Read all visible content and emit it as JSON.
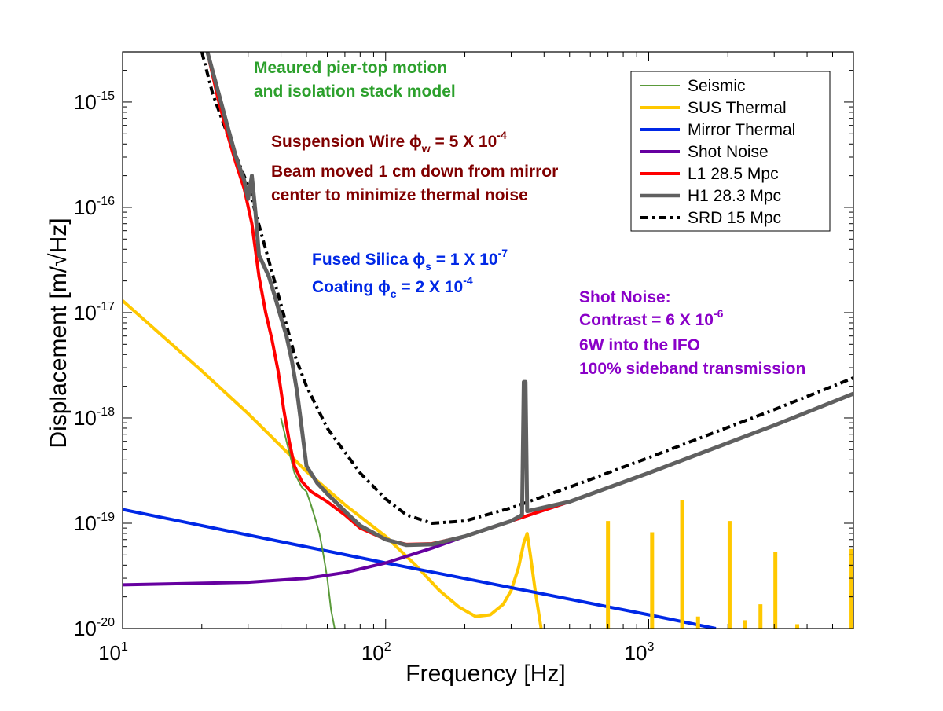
{
  "chart_data": {
    "type": "line",
    "x_scale": "log",
    "y_scale": "log",
    "xlabel": "Frequency [Hz]",
    "ylabel": "Displacement [m/√Hz]",
    "xlim": [
      10,
      6000
    ],
    "ylim": [
      1e-20,
      3e-15
    ],
    "grid": false,
    "legend_position": "top-right",
    "x_ticks": [
      {
        "base": "10",
        "exp": "1",
        "value": 10
      },
      {
        "base": "10",
        "exp": "2",
        "value": 100
      },
      {
        "base": "10",
        "exp": "3",
        "value": 1000
      }
    ],
    "y_ticks": [
      {
        "base": "10",
        "exp": "-15",
        "value": 1e-15
      },
      {
        "base": "10",
        "exp": "-16",
        "value": 1e-16
      },
      {
        "base": "10",
        "exp": "-17",
        "value": 1e-17
      },
      {
        "base": "10",
        "exp": "-18",
        "value": 1e-18
      },
      {
        "base": "10",
        "exp": "-19",
        "value": 1e-19
      },
      {
        "base": "10",
        "exp": "-20",
        "value": 1e-20
      }
    ],
    "series": [
      {
        "name": "Seismic",
        "color": "#5a9a3a",
        "width": 2,
        "dash": "",
        "points": [
          [
            40,
            1e-18
          ],
          [
            42,
            6e-19
          ],
          [
            45,
            3e-19
          ],
          [
            48,
            2.2e-19
          ],
          [
            50,
            2e-19
          ],
          [
            52,
            1.5e-19
          ],
          [
            54,
            1.1e-19
          ],
          [
            56,
            8e-20
          ],
          [
            58,
            5e-20
          ],
          [
            60,
            3e-20
          ],
          [
            62,
            1.5e-20
          ],
          [
            64,
            1e-20
          ]
        ]
      },
      {
        "name": "SUS Thermal",
        "color": "#ffc800",
        "width": 4,
        "dash": "",
        "points": [
          [
            10,
            1.3e-17
          ],
          [
            20,
            2.8e-18
          ],
          [
            30,
            1.1e-18
          ],
          [
            50,
            3.1e-19
          ],
          [
            70,
            1.5e-19
          ],
          [
            100,
            7.5e-20
          ],
          [
            130,
            4e-20
          ],
          [
            160,
            2.3e-20
          ],
          [
            190,
            1.6e-20
          ],
          [
            220,
            1.3e-20
          ],
          [
            250,
            1.35e-20
          ],
          [
            280,
            1.7e-20
          ],
          [
            300,
            2.3e-20
          ],
          [
            320,
            3.8e-20
          ],
          [
            335,
            6.5e-20
          ],
          [
            345,
            8e-20
          ],
          [
            355,
            5e-20
          ],
          [
            370,
            2.3e-20
          ],
          [
            390,
            1e-20
          ]
        ]
      },
      {
        "name": "Mirror Thermal",
        "color": "#0028e6",
        "width": 4,
        "dash": "",
        "points": [
          [
            10,
            1.35e-19
          ],
          [
            100,
            4.2e-20
          ],
          [
            1000,
            1.35e-20
          ],
          [
            1800,
            1e-20
          ]
        ]
      },
      {
        "name": "Shot Noise",
        "color": "#6600a0",
        "width": 4,
        "dash": "",
        "points": [
          [
            10,
            2.6e-20
          ],
          [
            30,
            2.75e-20
          ],
          [
            50,
            3e-20
          ],
          [
            70,
            3.4e-20
          ],
          [
            100,
            4.2e-20
          ],
          [
            150,
            5.8e-20
          ],
          [
            200,
            7.5e-20
          ],
          [
            300,
            1.05e-19
          ],
          [
            500,
            1.6e-19
          ],
          [
            1000,
            3e-19
          ],
          [
            3000,
            8.5e-19
          ],
          [
            6000,
            1.7e-18
          ]
        ]
      },
      {
        "name": "L1  28.5 Mpc",
        "color": "#ff0000",
        "width": 4,
        "dash": "",
        "points": [
          [
            21,
            3e-15
          ],
          [
            23,
            1.1e-15
          ],
          [
            25,
            5e-16
          ],
          [
            27,
            2.6e-16
          ],
          [
            29,
            1.5e-16
          ],
          [
            31,
            7e-17
          ],
          [
            33,
            2.2e-17
          ],
          [
            35,
            1e-17
          ],
          [
            37,
            5.5e-18
          ],
          [
            39,
            2.8e-18
          ],
          [
            41,
            1.2e-18
          ],
          [
            43,
            6e-19
          ],
          [
            45,
            3.5e-19
          ],
          [
            48,
            2.5e-19
          ],
          [
            52,
            2e-19
          ],
          [
            60,
            1.6e-19
          ],
          [
            70,
            1.2e-19
          ],
          [
            80,
            9e-20
          ],
          [
            100,
            7e-20
          ],
          [
            120,
            6.3e-20
          ],
          [
            150,
            6.4e-20
          ],
          [
            200,
            7.5e-20
          ],
          [
            300,
            1.05e-19
          ],
          [
            500,
            1.6e-19
          ],
          [
            1000,
            3e-19
          ],
          [
            3000,
            8.5e-19
          ],
          [
            6000,
            1.7e-18
          ]
        ]
      },
      {
        "name": "H1  28.3 Mpc",
        "color": "#606060",
        "width": 5,
        "dash": "",
        "points": [
          [
            21,
            3e-15
          ],
          [
            23,
            1.3e-15
          ],
          [
            25,
            6e-16
          ],
          [
            27,
            3e-16
          ],
          [
            29,
            1.8e-16
          ],
          [
            30,
            1.2e-16
          ],
          [
            31,
            2e-16
          ],
          [
            32,
            9e-17
          ],
          [
            33,
            3.5e-17
          ],
          [
            34,
            3e-17
          ],
          [
            36,
            2.2e-17
          ],
          [
            38,
            1.4e-17
          ],
          [
            40,
            9e-18
          ],
          [
            42,
            6e-18
          ],
          [
            44,
            3.5e-18
          ],
          [
            46,
            1.8e-18
          ],
          [
            48,
            8e-19
          ],
          [
            50,
            3.5e-19
          ],
          [
            55,
            2.4e-19
          ],
          [
            60,
            1.9e-19
          ],
          [
            70,
            1.3e-19
          ],
          [
            80,
            9.5e-20
          ],
          [
            100,
            7e-20
          ],
          [
            120,
            6.2e-20
          ],
          [
            150,
            6.3e-20
          ],
          [
            200,
            7.5e-20
          ],
          [
            300,
            1.05e-19
          ],
          [
            330,
            1.2e-19
          ],
          [
            335,
            2.2e-18
          ],
          [
            340,
            2.2e-18
          ],
          [
            345,
            1.3e-19
          ],
          [
            500,
            1.6e-19
          ],
          [
            1000,
            3e-19
          ],
          [
            3000,
            8.5e-19
          ],
          [
            6000,
            1.7e-18
          ]
        ]
      },
      {
        "name": "SRD  15 Mpc",
        "color": "#000000",
        "width": 4,
        "dash": "10,5,3,5",
        "points": [
          [
            20,
            3e-15
          ],
          [
            22,
            1.2e-15
          ],
          [
            25,
            5e-16
          ],
          [
            30,
            1.6e-16
          ],
          [
            35,
            4e-17
          ],
          [
            40,
            1.2e-17
          ],
          [
            45,
            4e-18
          ],
          [
            50,
            2e-18
          ],
          [
            60,
            8e-19
          ],
          [
            80,
            3e-19
          ],
          [
            100,
            1.7e-19
          ],
          [
            120,
            1.2e-19
          ],
          [
            150,
            1e-19
          ],
          [
            200,
            1.05e-19
          ],
          [
            300,
            1.4e-19
          ],
          [
            500,
            2.2e-19
          ],
          [
            1000,
            4.2e-19
          ],
          [
            3000,
            1.2e-18
          ],
          [
            6000,
            2.4e-18
          ]
        ]
      }
    ],
    "annotations": [
      {
        "text": "Meaured pier-top motion",
        "color": "#2ca02c"
      },
      {
        "text": "and isolation stack model",
        "color": "#2ca02c"
      },
      {
        "text": "Suspension Wire ϕ",
        "sub": "w",
        "after": " = 5 X 10",
        "sup": "-4",
        "color": "#800000"
      },
      {
        "text": "Beam moved 1 cm down from mirror",
        "color": "#800000"
      },
      {
        "text": "center to minimize thermal noise",
        "color": "#800000"
      },
      {
        "text": "Fused Silica ϕ",
        "sub": "s",
        "after": " = 1 X 10",
        "sup": "-7",
        "color": "#0028e6"
      },
      {
        "text": "Coating ϕ",
        "sub": "c",
        "after": " = 2 X 10",
        "sup": "-4",
        "color": "#0028e6"
      },
      {
        "text": "Shot Noise:",
        "color": "#8a00c8"
      },
      {
        "text": "Contrast = 6 X 10",
        "sup": "-6",
        "color": "#8a00c8"
      },
      {
        "text": "6W into the IFO",
        "color": "#8a00c8"
      },
      {
        "text": "100% sideband transmission",
        "color": "#8a00c8"
      }
    ],
    "sus_violin_peaks": [
      {
        "f": 700,
        "top": 1.05e-19
      },
      {
        "f": 1030,
        "top": 8.2e-20
      },
      {
        "f": 1340,
        "top": 1.65e-19
      },
      {
        "f": 1540,
        "top": 1.3e-20
      },
      {
        "f": 2030,
        "top": 1.05e-19
      },
      {
        "f": 2320,
        "top": 1.2e-20
      },
      {
        "f": 2660,
        "top": 1.7e-20
      },
      {
        "f": 3030,
        "top": 5.3e-20
      },
      {
        "f": 3670,
        "top": 1.1e-20
      },
      {
        "f": 5900,
        "top": 5.7e-20
      }
    ]
  }
}
